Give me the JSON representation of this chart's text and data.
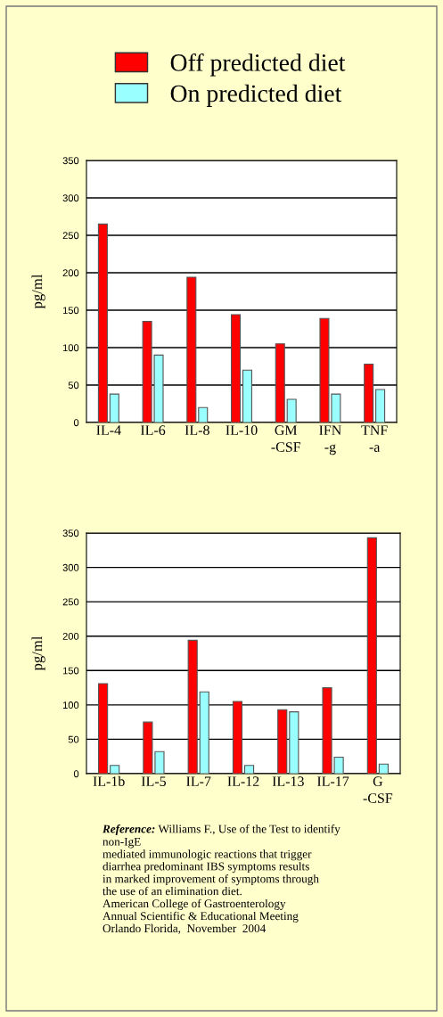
{
  "chart_data": [
    {
      "type": "bar",
      "ylabel": "pg/ml",
      "categories": [
        "IL-4",
        "IL-6",
        "IL-8",
        "IL-10",
        "GM\n-CSF",
        "IFN\n-g",
        "TNF\n-a"
      ],
      "ylim": [
        0,
        350
      ],
      "yticks": [
        0,
        50,
        100,
        150,
        200,
        250,
        300,
        350
      ],
      "grid": "y",
      "legend": "top",
      "series": [
        {
          "name": "Off predicted diet",
          "color": "#ff0000",
          "values": [
            265,
            135,
            194,
            144,
            105,
            139,
            78
          ]
        },
        {
          "name": "On predicted diet",
          "color": "#99ffff",
          "values": [
            38,
            90,
            20,
            70,
            31,
            38,
            44
          ]
        }
      ]
    },
    {
      "type": "bar",
      "ylabel": "pg/ml",
      "categories": [
        "IL-1b",
        "IL-5",
        "IL-7",
        "IL-12",
        "IL-13",
        "IL-17",
        "G\n-CSF"
      ],
      "ylim": [
        0,
        350
      ],
      "yticks": [
        0,
        50,
        100,
        150,
        200,
        250,
        300,
        350
      ],
      "grid": "y",
      "annotations": [
        "Reference:",
        "Williams F., Use of the Test to identify",
        "non-IgE\nmediated immunologic reactions that trigger\ndiarrhea predominant IBS symptoms results\nin marked improvement of symptoms through\nthe use of an elimination diet.\nAmerican College of Gastroenterology\nAnnual Scientific & Educational Meeting\nOrlando Florida,  November  2004"
      ],
      "series": [
        {
          "color": "#ff0000",
          "values": [
            131,
            75,
            194,
            105,
            93,
            125,
            343
          ]
        },
        {
          "color": "#99ffff",
          "values": [
            12,
            32,
            119,
            12,
            90,
            24,
            14
          ]
        }
      ]
    }
  ]
}
